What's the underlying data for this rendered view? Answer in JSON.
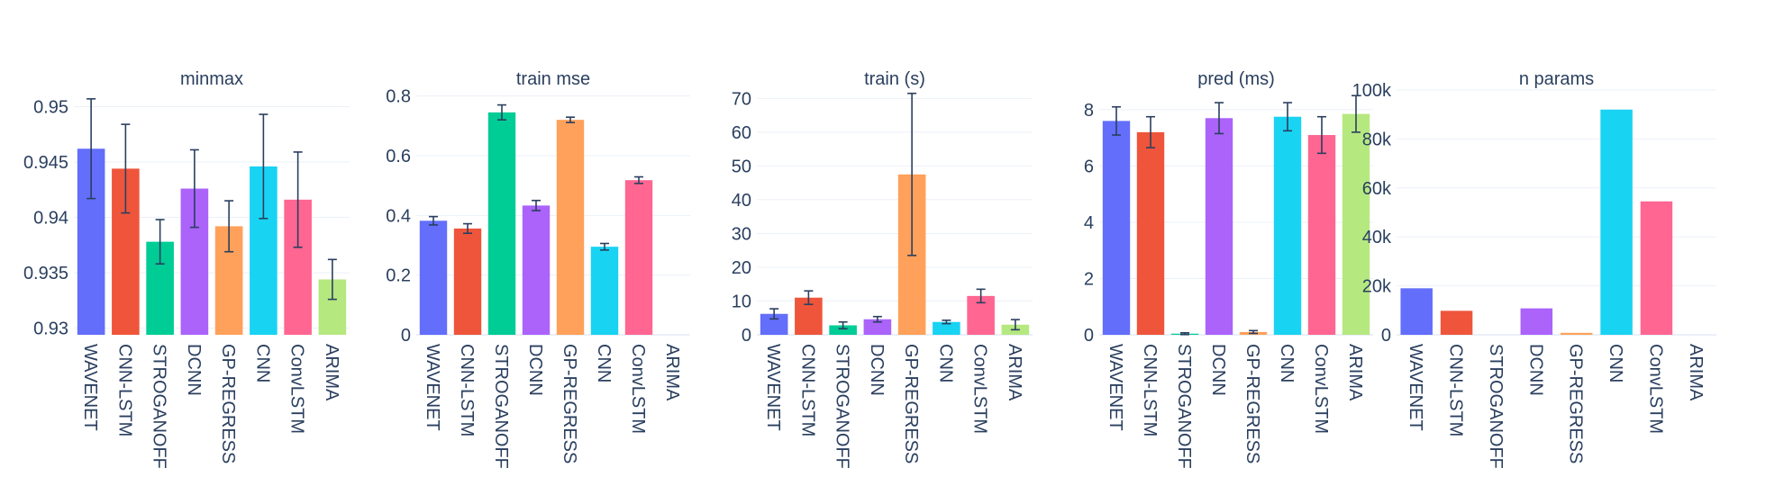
{
  "chart_data": [
    {
      "type": "bar",
      "title": "minmax",
      "categories": [
        "WAVENET",
        "CNN-LSTM",
        "STROGANOFF",
        "DCNN",
        "GP-REGRESS",
        "CNN",
        "ConvLSTM",
        "ARIMA"
      ],
      "values": [
        0.9462,
        0.9444,
        0.9378,
        0.9426,
        0.9392,
        0.9446,
        0.9416,
        0.9344
      ],
      "errors": [
        0.0045,
        0.004,
        0.002,
        0.0035,
        0.0023,
        0.0047,
        0.0043,
        0.0018
      ],
      "ylim": [
        0.9294,
        0.9515
      ],
      "yticks": [
        0.93,
        0.935,
        0.94,
        0.945,
        0.95
      ],
      "yticklabels": [
        "0.93",
        "0.935",
        "0.94",
        "0.945",
        "0.95"
      ],
      "xlabel": "",
      "ylabel": ""
    },
    {
      "type": "bar",
      "title": "train mse",
      "categories": [
        "WAVENET",
        "CNN-LSTM",
        "STROGANOFF",
        "DCNN",
        "GP-REGRESS",
        "CNN",
        "ConvLSTM",
        "ARIMA"
      ],
      "values": [
        0.382,
        0.356,
        0.745,
        0.433,
        0.72,
        0.295,
        0.518,
        0.0
      ],
      "errors": [
        0.014,
        0.016,
        0.025,
        0.017,
        0.009,
        0.011,
        0.011,
        0.0
      ],
      "ylim": [
        0,
        0.82
      ],
      "yticks": [
        0,
        0.2,
        0.4,
        0.6,
        0.8
      ],
      "yticklabels": [
        "0",
        "0.2",
        "0.4",
        "0.6",
        "0.8"
      ],
      "xlabel": "",
      "ylabel": ""
    },
    {
      "type": "bar",
      "title": "train (s)",
      "categories": [
        "WAVENET",
        "CNN-LSTM",
        "STROGANOFF",
        "DCNN",
        "GP-REGRESS",
        "CNN",
        "ConvLSTM",
        "ARIMA"
      ],
      "values": [
        6.2,
        11.0,
        2.8,
        4.6,
        47.5,
        3.8,
        11.5,
        3.0
      ],
      "errors": [
        1.5,
        2.0,
        1.0,
        0.8,
        24.0,
        0.5,
        2.0,
        1.5
      ],
      "ylim": [
        0,
        72.5
      ],
      "yticks": [
        0,
        10,
        20,
        30,
        40,
        50,
        60,
        70
      ],
      "yticklabels": [
        "0",
        "10",
        "20",
        "30",
        "40",
        "50",
        "60",
        "70"
      ],
      "xlabel": "",
      "ylabel": ""
    },
    {
      "type": "bar",
      "title": "pred (ms)",
      "categories": [
        "WAVENET",
        "CNN-LSTM",
        "STROGANOFF",
        "DCNN",
        "GP-REGRESS",
        "CNN",
        "ConvLSTM",
        "ARIMA"
      ],
      "values": [
        7.6,
        7.2,
        0.04,
        7.7,
        0.1,
        7.75,
        7.1,
        7.85
      ],
      "errors": [
        0.5,
        0.55,
        0.03,
        0.55,
        0.05,
        0.5,
        0.65,
        0.65
      ],
      "ylim": [
        0,
        8.7
      ],
      "yticks": [
        0,
        2,
        4,
        6,
        8
      ],
      "yticklabels": [
        "0",
        "2",
        "4",
        "6",
        "8"
      ],
      "xlabel": "",
      "ylabel": ""
    },
    {
      "type": "bar",
      "title": "n params",
      "categories": [
        "WAVENET",
        "CNN-LSTM",
        "STROGANOFF",
        "DCNN",
        "GP-REGRESS",
        "CNN",
        "ConvLSTM",
        "ARIMA"
      ],
      "values": [
        19000,
        9800,
        0,
        10800,
        800,
        92000,
        54500,
        0
      ],
      "errors": [
        0,
        0,
        0,
        0,
        0,
        0,
        0,
        0
      ],
      "ylim": [
        0,
        100000
      ],
      "yticks": [
        0,
        20000,
        40000,
        60000,
        80000,
        100000
      ],
      "yticklabels": [
        "0",
        "20k",
        "40k",
        "60k",
        "80k",
        "100k"
      ],
      "xlabel": "",
      "ylabel": ""
    }
  ],
  "colors": [
    "#636efa",
    "#ef553b",
    "#00cc96",
    "#ab63fa",
    "#ffa15a",
    "#19d3f3",
    "#ff6692",
    "#b6e880"
  ]
}
